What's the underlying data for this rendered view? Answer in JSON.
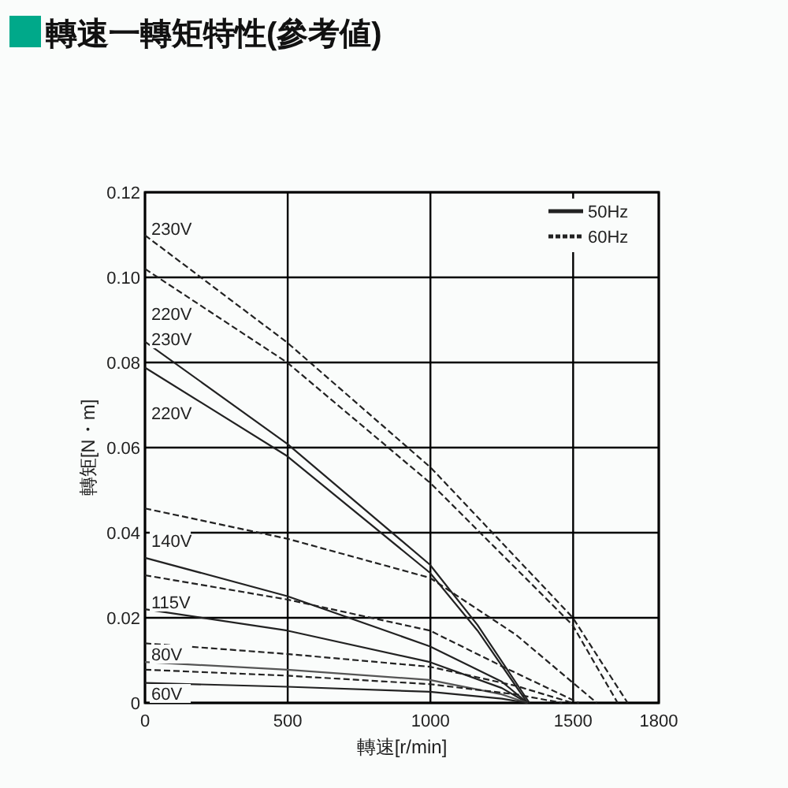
{
  "chart_data": {
    "type": "line",
    "title": "轉速一轉矩特性(參考値)",
    "xlabel": "轉速[r/min]",
    "ylabel": "轉矩[N・m]",
    "xlim": [
      0,
      1800
    ],
    "xticks": [
      0,
      500,
      1000,
      1500,
      1800
    ],
    "ylim": [
      0,
      0.12
    ],
    "yticks": [
      0,
      0.02,
      0.04,
      0.06,
      0.08,
      {
        "value": 0.1,
        "label": "0.10"
      },
      0.12
    ],
    "grid": true,
    "legend": "top right",
    "series": [
      {
        "name": "50Hz",
        "line_style": "solid",
        "color": "#222222",
        "x": [
          0,
          498,
          998,
          1165,
          1347
        ],
        "values": [
          0.0849,
          0.0609,
          0.0325,
          0.0183,
          0
        ]
      },
      {
        "name": "60Hz",
        "line_style": "dashed",
        "color": "#222222",
        "x": [
          0,
          498,
          1001,
          1498,
          1691
        ],
        "values": [
          0.1099,
          0.0847,
          0.0553,
          0.0201,
          0
        ]
      },
      {
        "line_style": "dashed",
        "color": "#222222",
        "x": [
          0,
          498,
          1001,
          1498,
          1656
        ],
        "values": [
          0.102,
          0.08,
          0.0516,
          0.0183,
          0
        ]
      },
      {
        "line_style": "solid",
        "color": "#222222",
        "x": [
          0,
          498,
          998,
          1165,
          1340
        ],
        "values": [
          0.0788,
          0.058,
          0.0306,
          0.017,
          0
        ]
      },
      {
        "line_style": "dashed",
        "color": "#222222",
        "x": [
          0,
          498,
          998,
          1300,
          1583
        ],
        "values": [
          0.0457,
          0.0386,
          0.0294,
          0.016,
          0
        ]
      },
      {
        "line_style": "solid",
        "color": "#222222",
        "x": [
          0,
          498,
          998,
          1250,
          1340
        ],
        "values": [
          0.0341,
          0.0251,
          0.0133,
          0.005,
          0
        ]
      },
      {
        "line_style": "dashed",
        "color": "#222222",
        "x": [
          0,
          498,
          998,
          1257,
          1520
        ],
        "values": [
          0.03,
          0.0243,
          0.017,
          0.0084,
          0
        ]
      },
      {
        "line_style": "solid",
        "color": "#222222",
        "x": [
          0,
          498,
          998,
          1250,
          1340
        ],
        "values": [
          0.022,
          0.017,
          0.0096,
          0.0035,
          0
        ]
      },
      {
        "line_style": "dashed",
        "color": "#222222",
        "x": [
          0,
          498,
          998,
          1300,
          1498
        ],
        "values": [
          0.014,
          0.0115,
          0.0085,
          0.004,
          0
        ]
      },
      {
        "line_style": "solid",
        "color": "#555555",
        "x": [
          0,
          498,
          998,
          1250,
          1340
        ],
        "values": [
          0.0096,
          0.0078,
          0.0054,
          0.002,
          0
        ]
      },
      {
        "line_style": "dashed",
        "color": "#222222",
        "x": [
          0,
          498,
          998,
          1300,
          1461
        ],
        "values": [
          0.0078,
          0.0064,
          0.0044,
          0.002,
          0
        ]
      },
      {
        "line_style": "solid",
        "color": "#222222",
        "x": [
          0,
          498,
          998,
          1250,
          1340
        ],
        "values": [
          0.0047,
          0.0038,
          0.0026,
          0.001,
          0
        ]
      }
    ],
    "annotations": [
      "230V",
      "220V",
      "230V",
      "220V",
      "140V",
      "115V",
      "80V",
      "60V"
    ]
  }
}
